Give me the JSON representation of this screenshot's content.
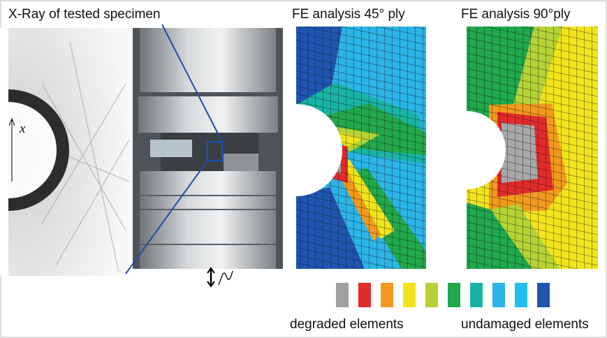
{
  "labels": {
    "xray_title": "X-Ray of tested specimen",
    "fe45_title": "FE analysis 45° ply",
    "fe90_title": "FE analysis 90°ply",
    "axis_x": "x",
    "legend_left": "degraded elements",
    "legend_right": "undamaged elements"
  }
}
